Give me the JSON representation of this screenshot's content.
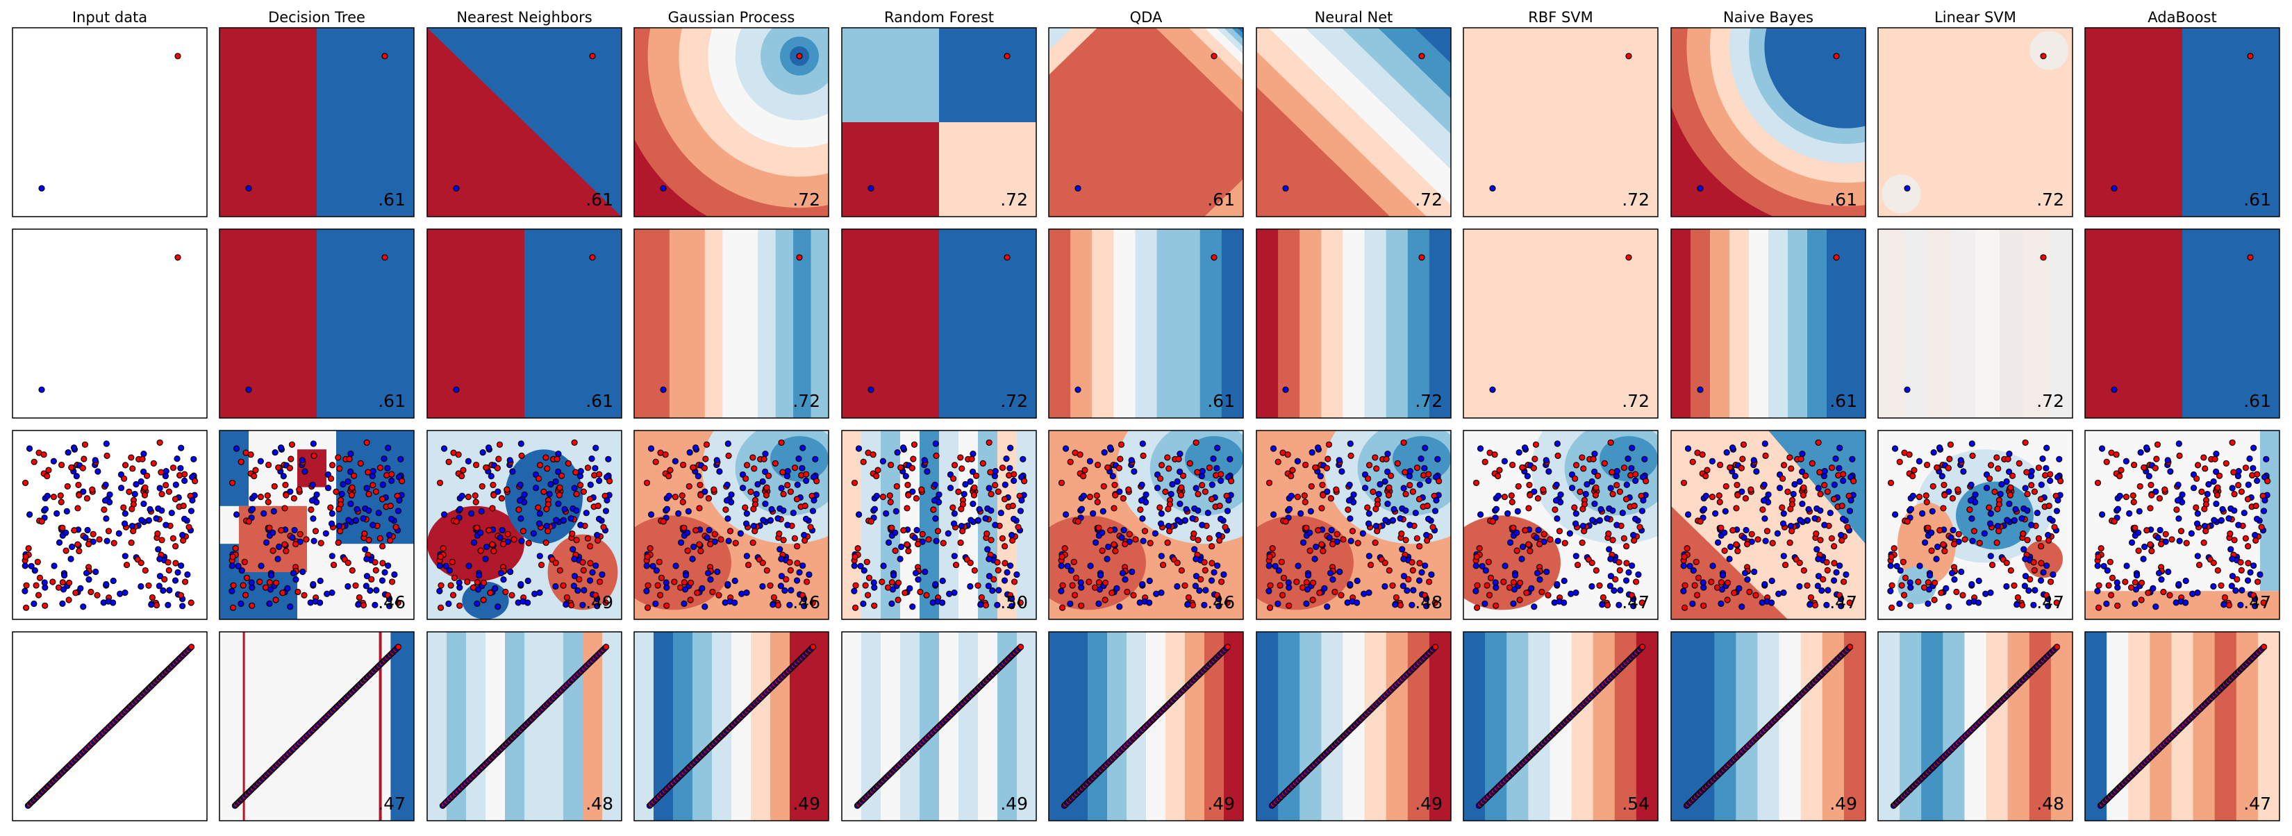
{
  "chart_data": {
    "type": "classifier_comparison_grid",
    "columns": [
      "Input data",
      "Decision Tree",
      "Nearest Neighbors",
      "Gaussian Process",
      "Random Forest",
      "QDA",
      "Neural Net",
      "RBF SVM",
      "Naive Bayes",
      "Linear SVM",
      "AdaBoost"
    ],
    "rows": [
      {
        "dataset": "two_points",
        "points": [
          [
            0.15,
            0.15,
            "blue"
          ],
          [
            0.85,
            0.85,
            "red"
          ]
        ],
        "scores": [
          "",
          ".61",
          ".61",
          ".72",
          ".72",
          ".61",
          ".72",
          ".72",
          ".61",
          ".72",
          ".61"
        ]
      },
      {
        "dataset": "two_points_vertical_split",
        "points": [
          [
            0.15,
            0.15,
            "blue"
          ],
          [
            0.85,
            0.85,
            "red"
          ]
        ],
        "scores": [
          "",
          ".61",
          ".61",
          ".72",
          ".72",
          ".61",
          ".72",
          ".72",
          ".61",
          ".72",
          ".61"
        ]
      },
      {
        "dataset": "random_scatter",
        "scores": [
          "",
          ".46",
          ".49",
          ".46",
          ".50",
          ".46",
          ".48",
          ".47",
          ".47",
          ".47",
          ".47"
        ]
      },
      {
        "dataset": "diagonal_line",
        "scores": [
          "",
          ".47",
          ".48",
          ".49",
          ".49",
          ".49",
          ".49",
          ".54",
          ".49",
          ".48",
          ".47"
        ]
      }
    ],
    "colors": {
      "rdbu": [
        "#b2182b",
        "#d6604d",
        "#f4a582",
        "#fddbc7",
        "#f7f7f7",
        "#d1e5f0",
        "#92c5de",
        "#4393c3",
        "#2166ac"
      ],
      "red_point": "#ff0000",
      "blue_point": "#0000ff"
    }
  }
}
